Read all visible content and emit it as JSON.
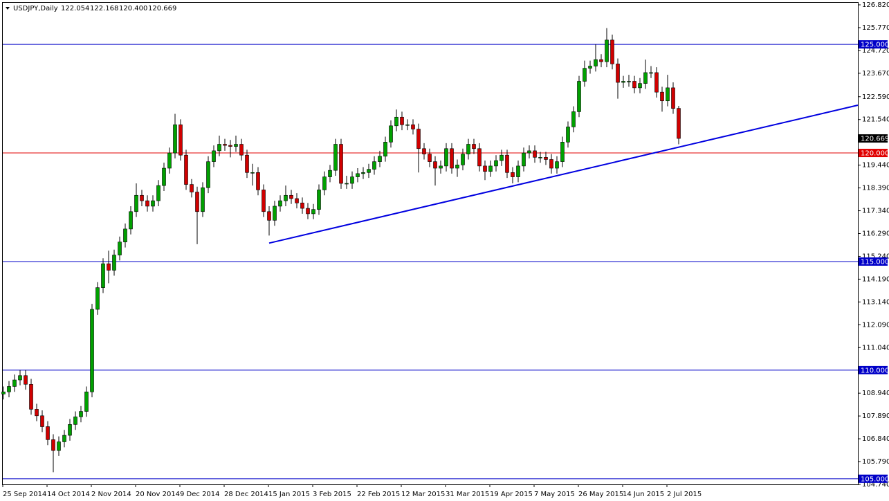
{
  "chart_data": {
    "type": "candlestick",
    "title": "USDJPY,Daily",
    "ohlc_labels": [
      "122.054",
      "122.168",
      "120.400",
      "120.669"
    ],
    "up_color": "#00a000",
    "down_color": "#d00000",
    "categories": [
      "25 Sep 2014",
      null,
      null,
      null,
      null,
      null,
      null,
      null,
      "14 Oct 2014",
      null,
      null,
      null,
      null,
      null,
      null,
      null,
      "2 Nov 2014",
      null,
      null,
      null,
      null,
      null,
      null,
      null,
      "20 Nov 2014",
      null,
      null,
      null,
      null,
      null,
      null,
      null,
      "9 Dec 2014",
      null,
      null,
      null,
      null,
      null,
      null,
      null,
      "28 Dec 2014",
      null,
      null,
      null,
      null,
      null,
      null,
      null,
      "15 Jan 2015",
      null,
      null,
      null,
      null,
      null,
      null,
      null,
      "3 Feb 2015",
      null,
      null,
      null,
      null,
      null,
      null,
      null,
      "22 Feb 2015",
      null,
      null,
      null,
      null,
      null,
      null,
      null,
      "12 Mar 2015",
      null,
      null,
      null,
      null,
      null,
      null,
      null,
      "31 Mar 2015",
      null,
      null,
      null,
      null,
      null,
      null,
      null,
      "19 Apr 2015",
      null,
      null,
      null,
      null,
      null,
      null,
      null,
      "7 May 2015",
      null,
      null,
      null,
      null,
      null,
      null,
      null,
      "26 May 2015",
      null,
      null,
      null,
      null,
      null,
      null,
      null,
      "14 Jun 2015",
      null,
      null,
      null,
      null,
      null,
      null,
      null,
      "2 Jul 2015",
      null,
      null
    ],
    "open": [
      108.9,
      109.0,
      109.25,
      109.55,
      109.75,
      109.35,
      108.2,
      107.9,
      107.4,
      106.8,
      106.3,
      106.7,
      107.0,
      107.5,
      107.85,
      108.1,
      109.0,
      112.8,
      113.8,
      114.9,
      114.6,
      115.3,
      115.9,
      116.5,
      117.3,
      118.05,
      117.8,
      117.55,
      117.8,
      118.5,
      119.3,
      120.0,
      121.3,
      119.9,
      118.55,
      118.2,
      117.3,
      118.4,
      119.6,
      120.1,
      120.4,
      120.35,
      120.3,
      120.4,
      119.9,
      119.1,
      119.1,
      118.3,
      117.3,
      116.9,
      117.55,
      117.8,
      118.05,
      117.9,
      117.7,
      117.45,
      117.2,
      117.4,
      118.3,
      118.9,
      119.2,
      120.4,
      118.6,
      118.6,
      118.9,
      119.05,
      119.1,
      119.25,
      119.6,
      119.85,
      120.5,
      121.25,
      121.65,
      121.3,
      121.3,
      121.1,
      120.2,
      119.95,
      119.6,
      119.3,
      119.4,
      120.2,
      119.3,
      119.45,
      119.95,
      120.4,
      120.2,
      119.4,
      119.15,
      119.4,
      119.65,
      119.9,
      119.1,
      118.9,
      119.4,
      120.0,
      120.1,
      119.8,
      119.8,
      119.7,
      119.3,
      119.6,
      120.5,
      121.2,
      121.9,
      123.3,
      123.9,
      124.0,
      124.3,
      124.2,
      125.2,
      124.1,
      123.25,
      123.3,
      123.3,
      123.0,
      123.2,
      123.7,
      123.7,
      122.8,
      122.4,
      123.0,
      122.054
    ],
    "high": [
      109.25,
      109.5,
      109.8,
      110.0,
      110.0,
      109.6,
      108.45,
      108.15,
      107.65,
      107.05,
      106.95,
      107.25,
      107.75,
      108.1,
      108.35,
      109.25,
      113.05,
      114.05,
      115.15,
      115.5,
      115.55,
      116.15,
      116.75,
      117.55,
      118.6,
      118.3,
      118.05,
      118.05,
      118.75,
      119.55,
      120.25,
      121.8,
      121.55,
      120.15,
      118.8,
      118.45,
      118.65,
      119.85,
      120.35,
      120.8,
      120.65,
      120.6,
      120.8,
      120.65,
      120.15,
      119.5,
      119.35,
      118.55,
      117.55,
      117.8,
      118.05,
      118.5,
      118.3,
      118.15,
      117.95,
      117.7,
      117.65,
      118.55,
      119.15,
      119.45,
      120.65,
      120.65,
      118.95,
      119.15,
      119.3,
      119.35,
      119.5,
      119.85,
      120.1,
      120.75,
      121.5,
      122.0,
      121.9,
      121.55,
      121.55,
      121.35,
      120.45,
      120.2,
      119.85,
      119.65,
      120.45,
      120.45,
      119.7,
      120.2,
      120.65,
      120.65,
      120.45,
      119.65,
      119.65,
      119.9,
      120.15,
      120.15,
      119.35,
      119.65,
      120.25,
      120.35,
      120.35,
      120.05,
      120.05,
      119.95,
      119.85,
      120.75,
      121.45,
      122.15,
      123.55,
      124.25,
      124.25,
      125.0,
      124.55,
      125.75,
      125.45,
      124.35,
      123.55,
      123.6,
      123.55,
      123.45,
      124.3,
      124.0,
      123.95,
      123.05,
      123.6,
      123.25,
      122.168
    ],
    "low": [
      108.65,
      108.75,
      109.0,
      109.3,
      109.1,
      107.95,
      107.65,
      107.15,
      106.55,
      105.3,
      106.05,
      106.45,
      106.75,
      107.25,
      107.6,
      107.85,
      108.75,
      112.55,
      113.55,
      114.0,
      114.35,
      115.05,
      115.65,
      116.25,
      117.05,
      117.55,
      117.3,
      117.3,
      117.55,
      118.25,
      119.05,
      119.75,
      119.65,
      118.3,
      117.95,
      115.8,
      117.05,
      118.15,
      119.35,
      119.85,
      120.1,
      119.8,
      120.05,
      119.65,
      118.85,
      118.5,
      118.05,
      117.05,
      116.2,
      116.65,
      117.3,
      117.55,
      117.65,
      117.45,
      117.2,
      116.95,
      116.95,
      117.15,
      118.05,
      118.65,
      118.95,
      118.35,
      118.35,
      118.35,
      118.65,
      118.8,
      118.85,
      119.0,
      119.35,
      119.6,
      120.25,
      121.0,
      121.05,
      121.05,
      120.85,
      119.1,
      119.7,
      119.35,
      118.5,
      119.05,
      119.15,
      119.05,
      118.9,
      119.2,
      119.7,
      119.95,
      119.15,
      118.75,
      118.9,
      119.15,
      119.4,
      118.85,
      118.6,
      118.65,
      119.15,
      119.75,
      119.55,
      119.55,
      119.45,
      119.05,
      119.05,
      119.35,
      120.25,
      120.95,
      121.65,
      123.05,
      123.65,
      123.75,
      123.95,
      123.95,
      123.85,
      122.5,
      123.0,
      123.05,
      122.75,
      122.75,
      122.95,
      123.45,
      122.55,
      121.9,
      122.15,
      121.8,
      120.4
    ],
    "close": [
      109.0,
      109.25,
      109.55,
      109.75,
      109.35,
      108.2,
      107.9,
      107.4,
      106.8,
      106.3,
      106.7,
      107.0,
      107.5,
      107.85,
      108.1,
      109.0,
      112.8,
      113.8,
      114.9,
      114.6,
      115.3,
      115.9,
      116.5,
      117.3,
      118.05,
      117.8,
      117.55,
      117.8,
      118.5,
      119.3,
      120.0,
      121.3,
      119.9,
      118.55,
      118.2,
      117.3,
      118.4,
      119.6,
      120.1,
      120.4,
      120.35,
      120.3,
      120.4,
      119.9,
      119.1,
      119.1,
      118.3,
      117.3,
      116.9,
      117.55,
      117.8,
      118.05,
      117.9,
      117.7,
      117.45,
      117.2,
      117.4,
      118.3,
      118.9,
      119.2,
      120.4,
      118.6,
      118.6,
      118.9,
      119.05,
      119.1,
      119.25,
      119.6,
      119.85,
      120.5,
      121.25,
      121.65,
      121.3,
      121.3,
      121.1,
      120.2,
      119.95,
      119.6,
      119.3,
      119.4,
      120.2,
      119.3,
      119.45,
      119.95,
      120.4,
      120.2,
      119.4,
      119.15,
      119.4,
      119.65,
      119.9,
      119.1,
      118.9,
      119.4,
      120.0,
      120.1,
      119.8,
      119.8,
      119.7,
      119.3,
      119.6,
      120.5,
      121.2,
      121.9,
      123.3,
      123.9,
      124.0,
      124.3,
      124.2,
      125.2,
      124.1,
      123.25,
      123.3,
      123.3,
      123.0,
      123.2,
      123.7,
      123.7,
      122.8,
      122.4,
      123.0,
      122.05,
      120.669
    ],
    "ylim": [
      104.74,
      126.82
    ],
    "yticks": [
      {
        "value": 126.82,
        "label": "126.820"
      },
      {
        "value": 125.77,
        "label": "125.770"
      },
      {
        "value": 124.72,
        "label": "124.720"
      },
      {
        "value": 123.67,
        "label": "123.670"
      },
      {
        "value": 122.59,
        "label": "122.590"
      },
      {
        "value": 121.54,
        "label": "121.540"
      },
      {
        "value": 119.44,
        "label": "119.440"
      },
      {
        "value": 118.39,
        "label": "118.390"
      },
      {
        "value": 117.34,
        "label": "117.340"
      },
      {
        "value": 116.29,
        "label": "116.290"
      },
      {
        "value": 115.24,
        "label": "115.240"
      },
      {
        "value": 114.19,
        "label": "114.190"
      },
      {
        "value": 113.14,
        "label": "113.140"
      },
      {
        "value": 112.09,
        "label": "112.090"
      },
      {
        "value": 111.04,
        "label": "111.040"
      },
      {
        "value": 108.94,
        "label": "108.940"
      },
      {
        "value": 107.89,
        "label": "107.890"
      },
      {
        "value": 106.84,
        "label": "106.840"
      },
      {
        "value": 105.79,
        "label": "105.790"
      },
      {
        "value": 104.74,
        "label": "104.740"
      }
    ],
    "levels": [
      {
        "value": 125,
        "label": "125.000",
        "color": "#0000c8"
      },
      {
        "value": 120,
        "label": "120.000",
        "color": "#e00000"
      },
      {
        "value": 115,
        "label": "115.000",
        "color": "#0000c8"
      },
      {
        "value": 110,
        "label": "110.000",
        "color": "#0000c8"
      },
      {
        "value": 105,
        "label": "105.000",
        "color": "#0000c8"
      }
    ],
    "trendline": {
      "color": "#0000e0",
      "start_price": 115.85,
      "end_price": 122.2
    },
    "last_price_color": "#000000"
  }
}
